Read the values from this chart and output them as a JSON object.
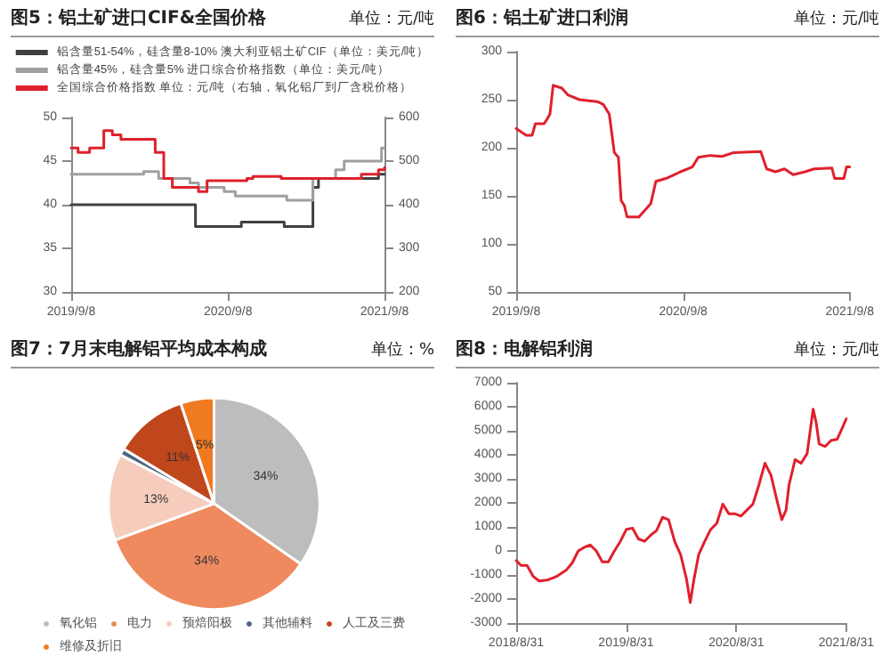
{
  "chart_data": [
    {
      "type": "step",
      "title": "图5：铝土矿进口CIF&全国价格",
      "annotations": [
        "单位：元/吨"
      ],
      "legend": "top",
      "marker": "none",
      "xlim": [
        "2019-09-08",
        "2021-09-08"
      ],
      "xticks": [
        {
          "value": "2019-09-08",
          "label": "2019/9/8"
        },
        {
          "value": "2020-09-08",
          "label": "2020/9/8"
        },
        {
          "value": "2021-09-08",
          "label": "2021/9/8"
        }
      ],
      "ylim": [
        30,
        50
      ],
      "yticks": [
        30,
        35,
        40,
        45,
        50
      ],
      "y2lim": [
        200,
        600
      ],
      "y2ticks": [
        200,
        300,
        400,
        500,
        600
      ],
      "series": [
        {
          "name": "铝含量51-54%，硅含量8-10% 澳大利亚铝土矿CIF（单位：美元/吨）",
          "color": "#404040",
          "x": [
            "2019-09-08",
            "2020-06-24",
            "2020-10-09",
            "2021-01-17",
            "2021-03-25",
            "2021-04-07",
            "2021-08-25",
            "2021-09-08"
          ],
          "values": [
            40,
            37.5,
            38,
            37.5,
            42,
            43,
            43.5,
            43.5
          ]
        },
        {
          "name": "铝含量45%，硅含量5% 进口综合价格指数（单位：美元/吨）",
          "color": "#a0a0a0",
          "x": [
            "2019-09-08",
            "2020-02-24",
            "2020-03-30",
            "2020-06-11",
            "2020-07-01",
            "2020-08-30",
            "2020-09-25",
            "2021-01-23",
            "2021-03-25",
            "2021-05-17",
            "2021-06-06",
            "2021-09-01",
            "2021-09-08"
          ],
          "values": [
            43.5,
            43.8,
            43,
            42.5,
            42,
            41.5,
            41,
            40.5,
            43,
            44,
            45,
            46.5,
            46.5
          ]
        },
        {
          "name": "全国综合价格指数 单位：元/吨（右轴，氧化铝厂到厂含税价格）",
          "color": "#e0202c",
          "axis": "y2",
          "x": [
            "2019-09-08",
            "2019-09-24",
            "2019-10-21",
            "2019-11-23",
            "2019-12-13",
            "2020-01-02",
            "2020-03-22",
            "2020-04-11",
            "2020-05-01",
            "2020-07-01",
            "2020-07-21",
            "2020-10-22",
            "2020-11-05",
            "2021-01-10",
            "2021-07-16",
            "2021-08-25",
            "2021-09-08"
          ],
          "values": [
            530,
            520,
            530,
            570,
            560,
            550,
            520,
            460,
            440,
            430,
            455,
            460,
            465,
            460,
            470,
            480,
            485
          ]
        }
      ]
    },
    {
      "type": "line",
      "title": "图6：铝土矿进口利润",
      "annotations": [
        "单位：元/吨"
      ],
      "marker": "none",
      "xlim": [
        "2019-09-08",
        "2021-09-08"
      ],
      "xticks": [
        {
          "value": "2019-09-08",
          "label": "2019/9/8"
        },
        {
          "value": "2020-09-08",
          "label": "2020/9/8"
        },
        {
          "value": "2021-09-08",
          "label": "2021/9/8"
        }
      ],
      "ylim": [
        50,
        300
      ],
      "yticks": [
        50,
        100,
        150,
        200,
        250,
        300
      ],
      "x": [
        "2019-09-08",
        "2019-09-30",
        "2019-10-13",
        "2019-10-20",
        "2019-11-08",
        "2019-11-15",
        "2019-11-21",
        "2019-11-28",
        "2019-12-17",
        "2019-12-30",
        "2020-01-25",
        "2020-03-04",
        "2020-03-17",
        "2020-03-30",
        "2020-04-10",
        "2020-04-19",
        "2020-04-25",
        "2020-05-02",
        "2020-05-08",
        "2020-06-03",
        "2020-06-16",
        "2020-06-29",
        "2020-07-10",
        "2020-08-01",
        "2020-09-02",
        "2020-09-28",
        "2020-10-11",
        "2020-11-06",
        "2020-12-02",
        "2020-12-28",
        "2021-02-25",
        "2021-03-10",
        "2021-03-29",
        "2021-04-18",
        "2021-05-07",
        "2021-06-02",
        "2021-06-22",
        "2021-07-31",
        "2021-08-06",
        "2021-08-26",
        "2021-09-01",
        "2021-09-08"
      ],
      "series": [
        {
          "color": "#e0202c",
          "values": [
            220,
            213,
            213,
            225,
            225,
            230,
            235,
            265,
            262,
            255,
            250,
            248,
            245,
            235,
            195,
            190,
            145,
            140,
            128,
            128,
            135,
            142,
            165,
            168,
            175,
            180,
            190,
            192,
            191,
            195,
            196,
            178,
            175,
            178,
            172,
            175,
            178,
            179,
            168,
            168,
            180,
            180
          ]
        }
      ]
    },
    {
      "type": "pie",
      "title": "图7：7月末电解铝平均成本构成",
      "annotations": [
        "单位：%"
      ],
      "legend": "bottom",
      "categories": [
        "氧化铝",
        "电力",
        "预焙阳极",
        "其他辅料",
        "人工及三费",
        "维修及折旧"
      ],
      "values": [
        34,
        34,
        13,
        1,
        11,
        5
      ],
      "value_labels": [
        "34%",
        "34%",
        "13%",
        null,
        "11%",
        "5%"
      ],
      "colors": [
        "#bdbdbd",
        "#ee8a5e",
        "#f6cdbd",
        "#4f6580",
        "#c0461c",
        "#f07a22"
      ]
    },
    {
      "type": "line",
      "title": "图8：电解铝利润",
      "annotations": [
        "单位：元/吨"
      ],
      "marker": "none",
      "xlim": [
        "2018-08-31",
        "2021-08-31"
      ],
      "xticks": [
        {
          "value": "2018-08-31",
          "label": "2018/8/31"
        },
        {
          "value": "2019-08-31",
          "label": "2019/8/31"
        },
        {
          "value": "2020-08-31",
          "label": "2020/8/31"
        },
        {
          "value": "2021-08-31",
          "label": "2021/8/31"
        }
      ],
      "ylim": [
        -3000,
        7000
      ],
      "yticks": [
        -3000,
        -2000,
        -1000,
        0,
        1000,
        2000,
        3000,
        4000,
        5000,
        6000,
        7000
      ],
      "x": [
        "2018-08-31",
        "2018-09-16",
        "2018-10-06",
        "2018-10-26",
        "2018-11-15",
        "2018-12-15",
        "2019-01-14",
        "2019-02-13",
        "2019-03-05",
        "2019-03-25",
        "2019-04-14",
        "2019-05-04",
        "2019-05-24",
        "2019-06-13",
        "2019-07-03",
        "2019-07-23",
        "2019-08-12",
        "2019-09-01",
        "2019-09-21",
        "2019-10-11",
        "2019-10-31",
        "2019-11-20",
        "2019-12-10",
        "2019-12-30",
        "2020-01-19",
        "2020-02-08",
        "2020-02-28",
        "2020-03-19",
        "2020-03-31",
        "2020-04-12",
        "2020-04-28",
        "2020-05-18",
        "2020-06-07",
        "2020-06-27",
        "2020-07-17",
        "2020-08-06",
        "2020-08-26",
        "2020-09-15",
        "2020-10-05",
        "2020-10-25",
        "2020-11-14",
        "2020-12-04",
        "2020-12-24",
        "2021-01-13",
        "2021-01-29",
        "2021-02-12",
        "2021-02-22",
        "2021-03-14",
        "2021-04-03",
        "2021-04-23",
        "2021-05-13",
        "2021-05-23",
        "2021-06-02",
        "2021-06-22",
        "2021-07-12",
        "2021-08-01",
        "2021-08-17",
        "2021-08-31"
      ],
      "series": [
        {
          "color": "#e0202c",
          "values": [
            -400,
            -600,
            -600,
            -1050,
            -1250,
            -1200,
            -1050,
            -800,
            -500,
            0,
            150,
            250,
            0,
            -450,
            -450,
            0,
            400,
            900,
            950,
            500,
            400,
            650,
            850,
            1400,
            1300,
            400,
            -150,
            -1200,
            -2150,
            -1200,
            -150,
            400,
            900,
            1150,
            1950,
            1550,
            1550,
            1450,
            1700,
            1950,
            2750,
            3650,
            3150,
            2100,
            1300,
            1700,
            2750,
            3800,
            3650,
            4050,
            5900,
            5350,
            4450,
            4350,
            4600,
            4650,
            5100,
            5500
          ]
        }
      ]
    }
  ]
}
